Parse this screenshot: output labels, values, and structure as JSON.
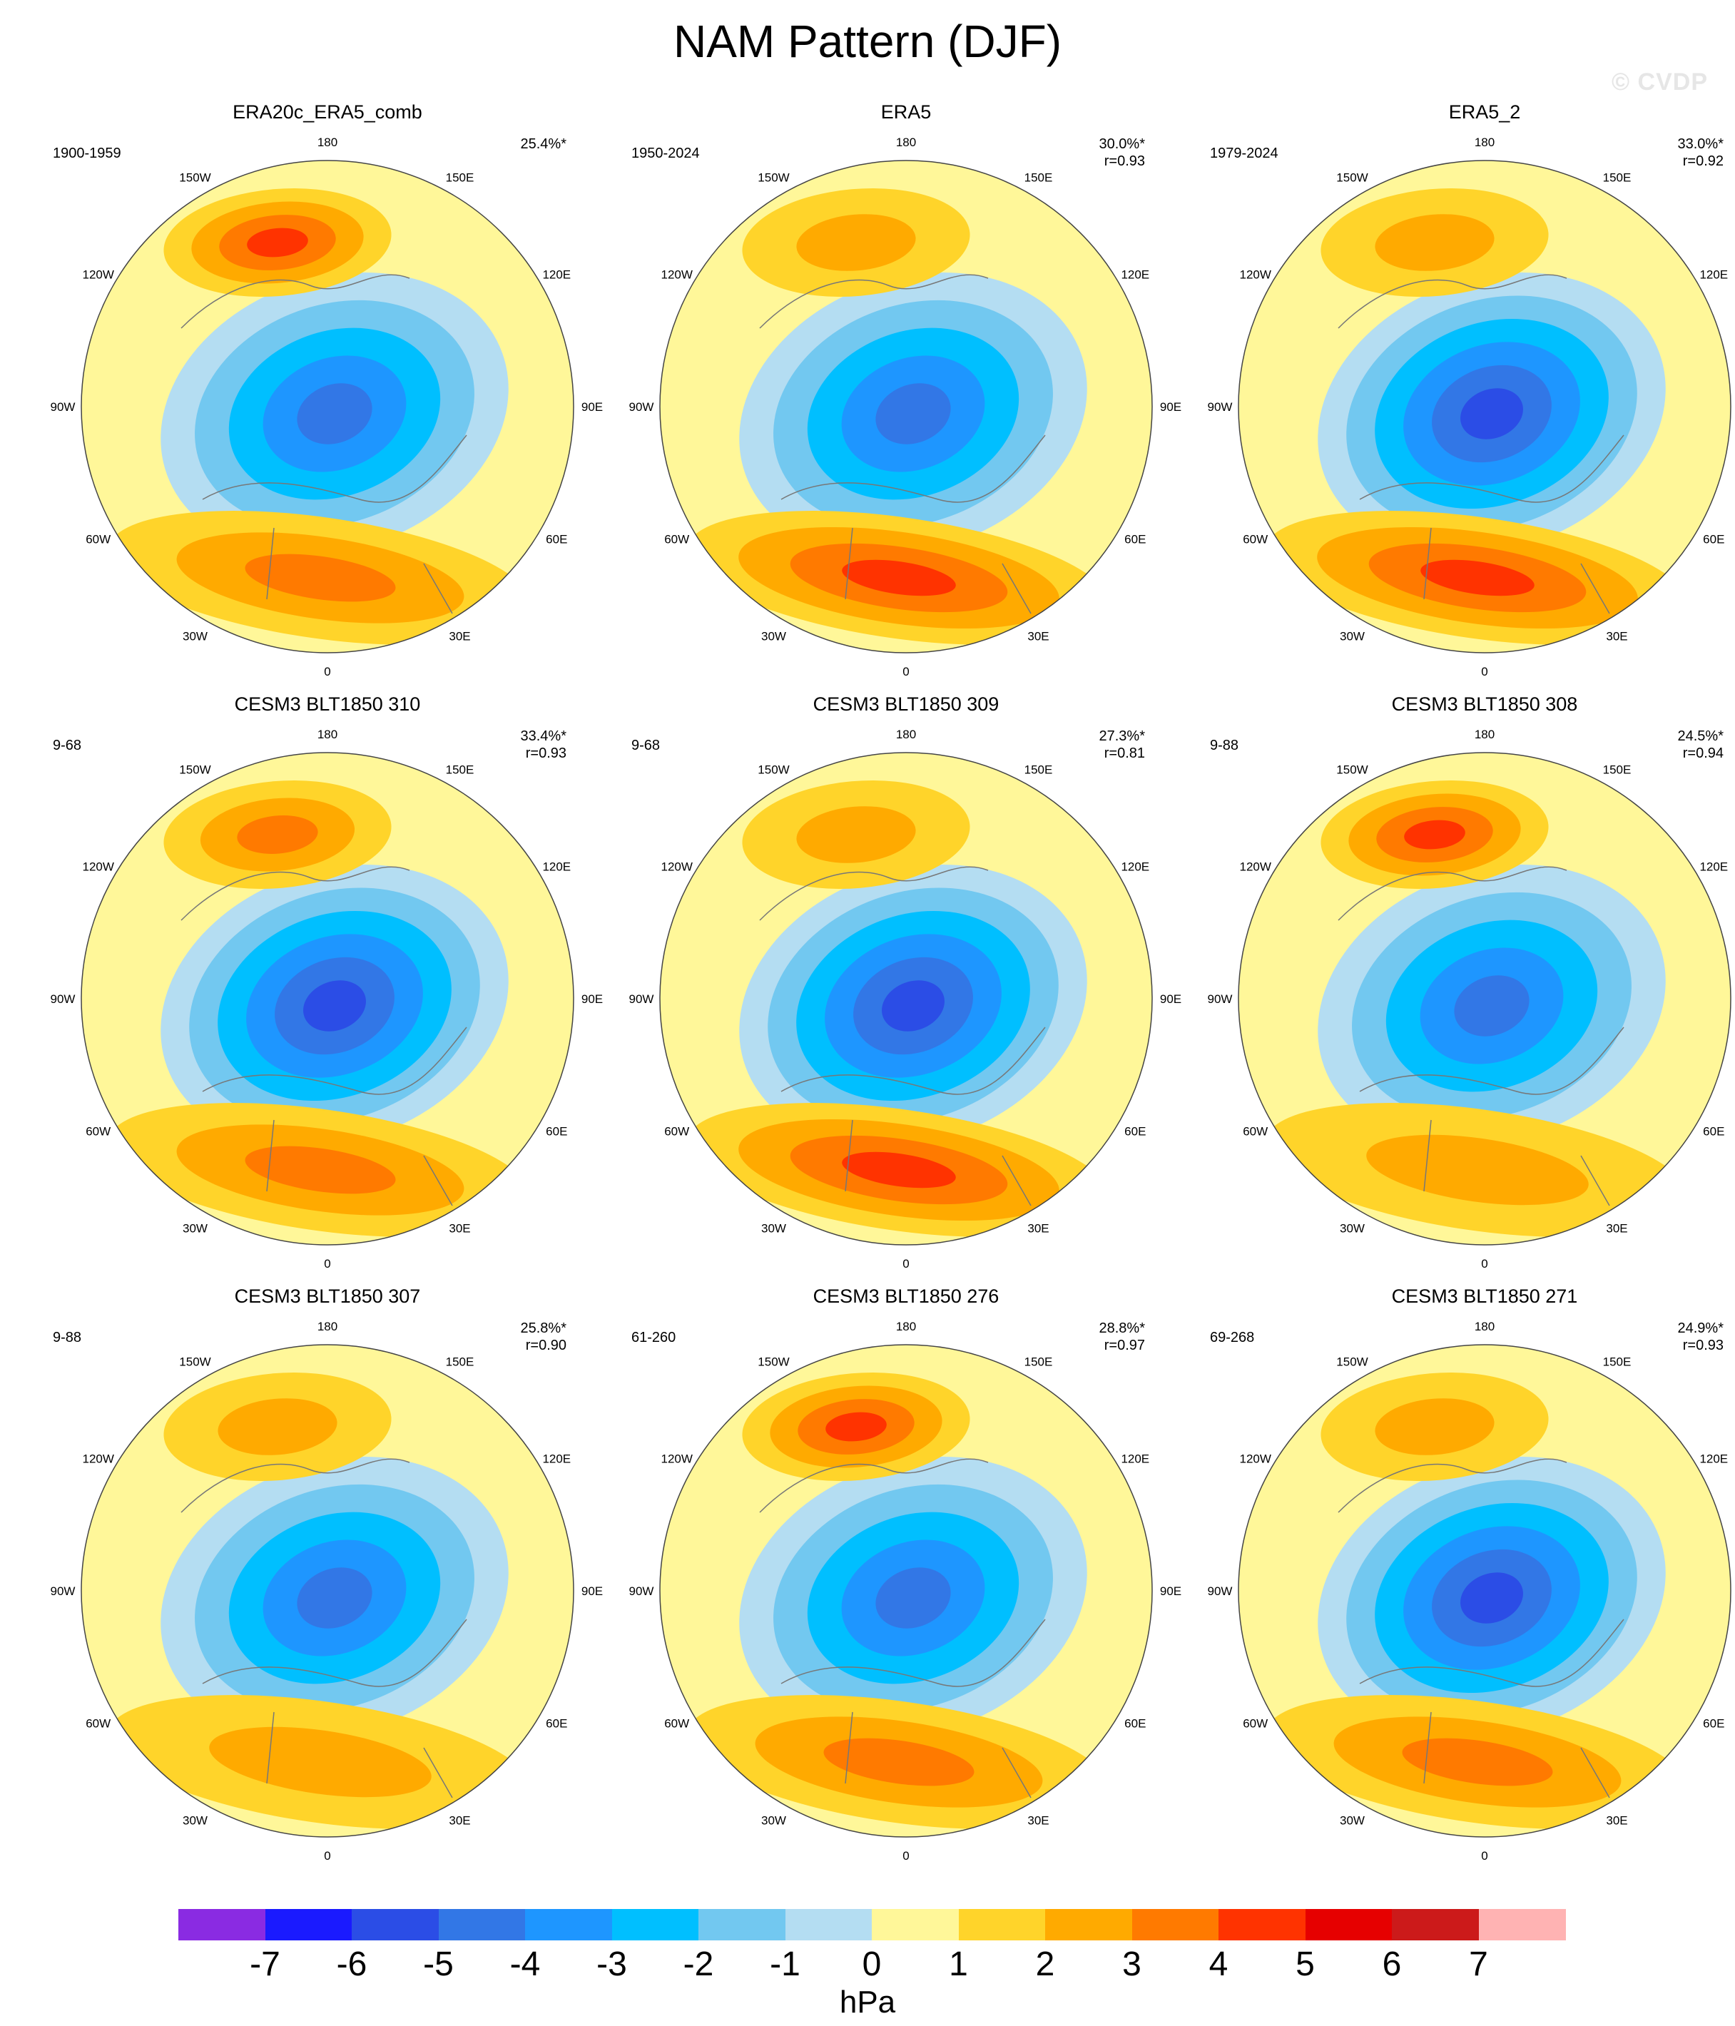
{
  "title": "NAM Pattern (DJF)",
  "watermark": "© CVDP",
  "lon_labels": [
    "180",
    "150E",
    "120E",
    "90E",
    "60E",
    "30E",
    "0",
    "30W",
    "60W",
    "90W",
    "120W",
    "150W"
  ],
  "panels": [
    {
      "title": "ERA20c_ERA5_comb",
      "years": "1900-1959",
      "pct": "25.4%*",
      "r": "",
      "trough": -4.5,
      "pac_ridge": 3.5,
      "atl_ridge": 2.5
    },
    {
      "title": "ERA5",
      "years": "1950-2024",
      "pct": "30.0%*",
      "r": "r=0.93",
      "trough": -4.5,
      "pac_ridge": 1.5,
      "atl_ridge": 3.5
    },
    {
      "title": "ERA5_2",
      "years": "1979-2024",
      "pct": "33.0%*",
      "r": "r=0.92",
      "trough": -5.5,
      "pac_ridge": 1.5,
      "atl_ridge": 3.5
    },
    {
      "title": "CESM3 BLT1850 310",
      "years": "9-68",
      "pct": "33.4%*",
      "r": "r=0.93",
      "trough": -5.5,
      "pac_ridge": 2.5,
      "atl_ridge": 2.5
    },
    {
      "title": "CESM3 BLT1850 309",
      "years": "9-68",
      "pct": "27.3%*",
      "r": "r=0.81",
      "trough": -5.5,
      "pac_ridge": 1.5,
      "atl_ridge": 3.5
    },
    {
      "title": "CESM3 BLT1850 308",
      "years": "9-88",
      "pct": "24.5%*",
      "r": "r=0.94",
      "trough": -4.5,
      "pac_ridge": 3.5,
      "atl_ridge": 1.5
    },
    {
      "title": "CESM3 BLT1850 307",
      "years": "9-88",
      "pct": "25.8%*",
      "r": "r=0.90",
      "trough": -4.5,
      "pac_ridge": 1.5,
      "atl_ridge": 1.5
    },
    {
      "title": "CESM3 BLT1850 276",
      "years": "61-260",
      "pct": "28.8%*",
      "r": "r=0.97",
      "trough": -4.5,
      "pac_ridge": 3.5,
      "atl_ridge": 2.5
    },
    {
      "title": "CESM3 BLT1850 271",
      "years": "69-268",
      "pct": "24.9%*",
      "r": "r=0.93",
      "trough": -5.5,
      "pac_ridge": 1.5,
      "atl_ridge": 2.5
    }
  ],
  "colorbar": {
    "units": "hPa",
    "labels": [
      "-7",
      "-6",
      "-5",
      "-4",
      "-3",
      "-2",
      "-1",
      "0",
      "1",
      "2",
      "3",
      "4",
      "5",
      "6",
      "7"
    ],
    "colors": [
      "#8a2be2",
      "#1a1aff",
      "#2b4de6",
      "#3277e6",
      "#1e96ff",
      "#00bfff",
      "#72c8f0",
      "#b4ddf2",
      "#fff799",
      "#ffd42a",
      "#ffaa00",
      "#ff7a00",
      "#ff3300",
      "#e60000",
      "#cc1a1a",
      "#ffb3b3"
    ]
  }
}
